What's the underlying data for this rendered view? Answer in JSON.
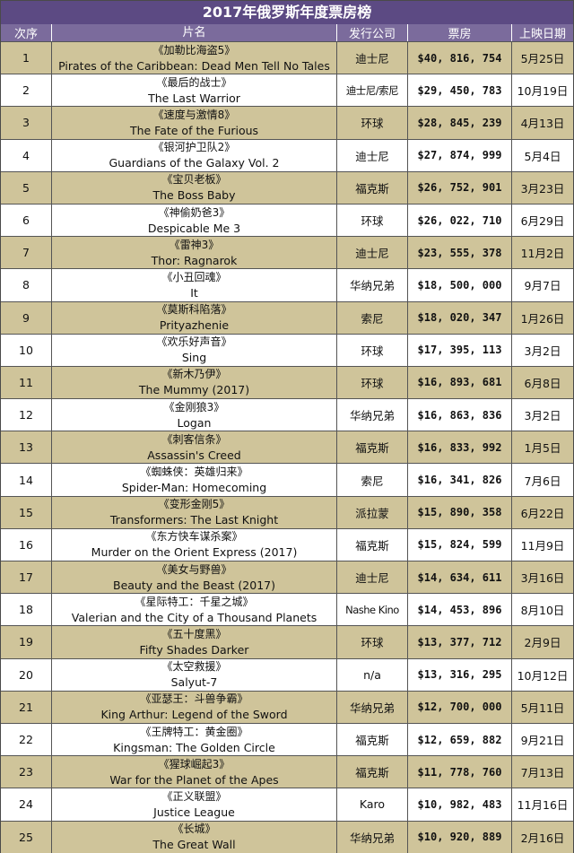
{
  "title": "2017年俄罗斯年度票房榜",
  "headers": [
    "次序",
    "片名",
    "发行公司",
    "票房",
    "上映日期"
  ],
  "rows": [
    {
      "rank": "1",
      "cn": "《加勒比海盗5》",
      "en": "Pirates of the Caribbean: Dead Men Tell No Tales",
      "dist": "迪士尼",
      "gross": "$40, 816, 754",
      "date": "5月25日"
    },
    {
      "rank": "2",
      "cn": "《最后的战士》",
      "en": "The Last Warrior",
      "dist": "迪士尼/索尼",
      "gross": "$29, 450, 783",
      "date": "10月19日"
    },
    {
      "rank": "3",
      "cn": "《速度与激情8》",
      "en": "The Fate of the Furious",
      "dist": "环球",
      "gross": "$28, 845, 239",
      "date": "4月13日"
    },
    {
      "rank": "4",
      "cn": "《银河护卫队2》",
      "en": "Guardians of the Galaxy Vol. 2",
      "dist": "迪士尼",
      "gross": "$27, 874, 999",
      "date": "5月4日"
    },
    {
      "rank": "5",
      "cn": "《宝贝老板》",
      "en": "The Boss Baby",
      "dist": "福克斯",
      "gross": "$26, 752, 901",
      "date": "3月23日"
    },
    {
      "rank": "6",
      "cn": "《神偷奶爸3》",
      "en": "Despicable Me 3",
      "dist": "环球",
      "gross": "$26, 022, 710",
      "date": "6月29日"
    },
    {
      "rank": "7",
      "cn": "《雷神3》",
      "en": "Thor: Ragnarok",
      "dist": "迪士尼",
      "gross": "$23, 555, 378",
      "date": "11月2日"
    },
    {
      "rank": "8",
      "cn": "《小丑回魂》",
      "en": "It",
      "dist": "华纳兄弟",
      "gross": "$18, 500, 000",
      "date": "9月7日"
    },
    {
      "rank": "9",
      "cn": "《莫斯科陷落》",
      "en": "Prityazhenie",
      "dist": "索尼",
      "gross": "$18, 020, 347",
      "date": "1月26日"
    },
    {
      "rank": "10",
      "cn": "《欢乐好声音》",
      "en": "Sing",
      "dist": "环球",
      "gross": "$17, 395, 113",
      "date": "3月2日"
    },
    {
      "rank": "11",
      "cn": "《新木乃伊》",
      "en": "The Mummy (2017)",
      "dist": "环球",
      "gross": "$16, 893, 681",
      "date": "6月8日"
    },
    {
      "rank": "12",
      "cn": "《金刚狼3》",
      "en": "Logan",
      "dist": "华纳兄弟",
      "gross": "$16, 863, 836",
      "date": "3月2日"
    },
    {
      "rank": "13",
      "cn": "《刺客信条》",
      "en": "Assassin's Creed",
      "dist": "福克斯",
      "gross": "$16, 833, 992",
      "date": "1月5日"
    },
    {
      "rank": "14",
      "cn": "《蜘蛛侠：英雄归来》",
      "en": "Spider-Man: Homecoming",
      "dist": "索尼",
      "gross": "$16, 341, 826",
      "date": "7月6日"
    },
    {
      "rank": "15",
      "cn": "《变形金刚5》",
      "en": "Transformers: The Last Knight",
      "dist": "派拉蒙",
      "gross": "$15, 890, 358",
      "date": "6月22日"
    },
    {
      "rank": "16",
      "cn": "《东方快车谋杀案》",
      "en": "Murder on the Orient Express (2017)",
      "dist": "福克斯",
      "gross": "$15, 824, 599",
      "date": "11月9日"
    },
    {
      "rank": "17",
      "cn": "《美女与野兽》",
      "en": "Beauty and the Beast (2017)",
      "dist": "迪士尼",
      "gross": "$14, 634, 611",
      "date": "3月16日"
    },
    {
      "rank": "18",
      "cn": "《星际特工：千星之城》",
      "en": "Valerian and the City of a Thousand Planets",
      "dist": "Nashe Kino",
      "gross": "$14, 453, 896",
      "date": "8月10日"
    },
    {
      "rank": "19",
      "cn": "《五十度黑》",
      "en": "Fifty Shades Darker",
      "dist": "环球",
      "gross": "$13, 377, 712",
      "date": "2月9日"
    },
    {
      "rank": "20",
      "cn": "《太空救援》",
      "en": "Salyut-7",
      "dist": "n/a",
      "gross": "$13, 316, 295",
      "date": "10月12日"
    },
    {
      "rank": "21",
      "cn": "《亚瑟王：斗兽争霸》",
      "en": "King Arthur: Legend of the Sword",
      "dist": "华纳兄弟",
      "gross": "$12, 700, 000",
      "date": "5月11日"
    },
    {
      "rank": "22",
      "cn": "《王牌特工：黄金圈》",
      "en": "Kingsman: The Golden Circle",
      "dist": "福克斯",
      "gross": "$12, 659, 882",
      "date": "9月21日"
    },
    {
      "rank": "23",
      "cn": "《猩球崛起3》",
      "en": "War for the Planet of the Apes",
      "dist": "福克斯",
      "gross": "$11, 778, 760",
      "date": "7月13日"
    },
    {
      "rank": "24",
      "cn": "《正义联盟》",
      "en": "Justice League",
      "dist": "Karo",
      "gross": "$10, 982, 483",
      "date": "11月16日"
    },
    {
      "rank": "25",
      "cn": "《长城》",
      "en": "The Great Wall",
      "dist": "华纳兄弟",
      "gross": "$10, 920, 889",
      "date": "2月16日"
    }
  ]
}
